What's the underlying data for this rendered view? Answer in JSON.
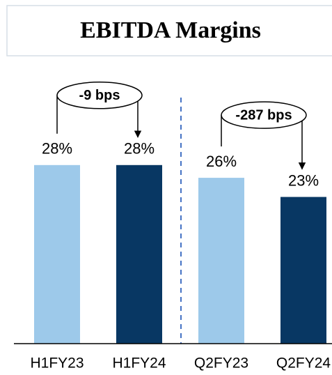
{
  "chart_data": {
    "type": "bar",
    "title": "EBITDA Margins",
    "categories": [
      "H1FY23",
      "H1FY24",
      "Q2FY23",
      "Q2FY24"
    ],
    "values": [
      28,
      28,
      26,
      23
    ],
    "value_labels": [
      "28%",
      "28%",
      "26%",
      "23%"
    ],
    "colors": [
      "#9dc9ea",
      "#083763",
      "#9dc9ea",
      "#083763"
    ],
    "annotations": [
      "-9 bps",
      "-287 bps"
    ]
  }
}
